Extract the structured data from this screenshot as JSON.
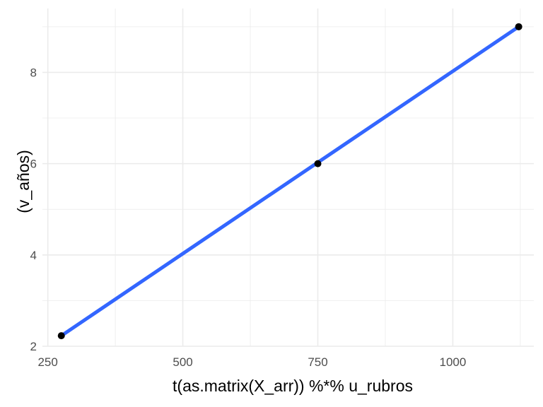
{
  "chart_data": {
    "type": "scatter",
    "title": "",
    "xlabel": "t(as.matrix(X_arr)) %*% u_rubros",
    "ylabel": "(v_años)",
    "xlim": [
      240,
      1150
    ],
    "ylim": [
      2.0,
      9.4
    ],
    "x_ticks": [
      250,
      500,
      750,
      1000
    ],
    "x_tick_labels": [
      "250",
      "500",
      "750",
      "1000"
    ],
    "y_ticks": [
      2,
      4,
      6,
      8
    ],
    "y_tick_labels": [
      "2",
      "4",
      "6",
      "8"
    ],
    "grid": true,
    "legend": "none",
    "series": [
      {
        "values": [
          {
            "x": 275,
            "y": 2.23
          },
          {
            "x": 750,
            "y": 6.0
          },
          {
            "x": 1122,
            "y": 9.0
          }
        ]
      }
    ],
    "fit_line": {
      "method": "lm",
      "color": "#3366FF",
      "from": {
        "x": 275,
        "y": 2.23
      },
      "to": {
        "x": 1122,
        "y": 9.0
      }
    },
    "colors": {
      "points": "#000000",
      "grid": "#ebebeb",
      "line": "#3366FF",
      "background": "#ffffff"
    }
  }
}
